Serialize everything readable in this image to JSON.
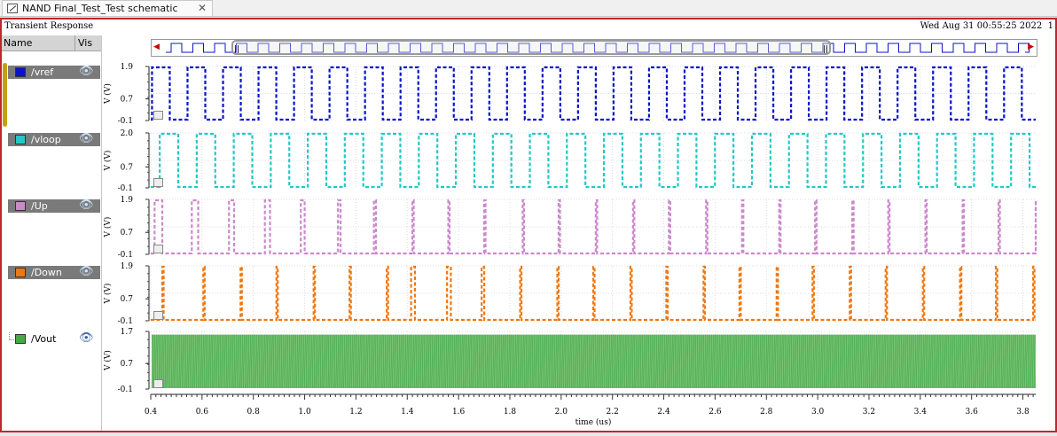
{
  "tab": {
    "title": "NAND Final_Test_Test schematic",
    "close_glyph": "✕"
  },
  "plot": {
    "title": "Transient Response",
    "date": "Wed Aug 31 00:55:25 2022",
    "page": "1"
  },
  "legend": {
    "header_name": "Name",
    "header_vis": "Vis",
    "items": [
      {
        "label": "/vref",
        "color": "#0a14c8",
        "selected": true,
        "icon": "eye-icon"
      },
      {
        "label": "/vloop",
        "color": "#22c8c8",
        "selected": true,
        "icon": "eye-icon"
      },
      {
        "label": "/Up",
        "color": "#cc88cc",
        "selected": true,
        "icon": "eye-icon"
      },
      {
        "label": "/Down",
        "color": "#f07810",
        "selected": true,
        "icon": "eye-icon"
      },
      {
        "label": "/Vout",
        "color": "#44aa44",
        "selected": false,
        "icon": "eye-icon"
      }
    ]
  },
  "chart_data": {
    "type": "line",
    "xlabel": "time (us)",
    "xlim": [
      0.4,
      3.85
    ],
    "x_ticks": [
      "0.4",
      "0.6",
      "0.8",
      "1.0",
      "1.2",
      "1.4",
      "1.6",
      "1.8",
      "2.0",
      "2.2",
      "2.4",
      "2.6",
      "2.8",
      "3.0",
      "3.2",
      "3.4",
      "3.6",
      "3.8"
    ],
    "grid": true,
    "series": [
      {
        "name": "/vref",
        "ylabel": "V (V)",
        "y_ticks": [
          "1.9",
          "0.7",
          "-0.1"
        ],
        "ylim": [
          -0.1,
          1.9
        ],
        "color": "#0a14c8",
        "kind": "square",
        "period_us": 0.1384,
        "duty": 0.5,
        "start_us": 0.405
      },
      {
        "name": "/vloop",
        "ylabel": "V (V)",
        "y_ticks": [
          "2.0",
          "0.7",
          "-0.1"
        ],
        "ylim": [
          -0.1,
          2.0
        ],
        "color": "#22c8c8",
        "kind": "square",
        "period_us": 0.1443,
        "duty": 0.5,
        "start_us": 0.435
      },
      {
        "name": "/Up",
        "ylabel": "V (V)",
        "y_ticks": [
          "1.9",
          "0.7",
          "-0.1"
        ],
        "ylim": [
          -0.1,
          1.9
        ],
        "color": "#cc88cc",
        "kind": "pulses",
        "pulses": [
          [
            0.415,
            0.445
          ],
          [
            0.56,
            0.585
          ],
          [
            0.705,
            0.725
          ],
          [
            0.845,
            0.865
          ],
          [
            0.985,
            1.0
          ],
          [
            1.13,
            1.14
          ],
          [
            1.27,
            1.278
          ],
          [
            1.42,
            1.425
          ],
          [
            1.56,
            1.565
          ],
          [
            1.7,
            1.705
          ],
          [
            1.85,
            1.855
          ],
          [
            1.99,
            1.995
          ],
          [
            2.135,
            2.14
          ],
          [
            2.28,
            2.285
          ],
          [
            2.42,
            2.425
          ],
          [
            2.565,
            2.57
          ],
          [
            2.705,
            2.71
          ],
          [
            2.85,
            2.855
          ],
          [
            2.99,
            2.995
          ],
          [
            3.135,
            3.14
          ],
          [
            3.275,
            3.28
          ],
          [
            3.42,
            3.425
          ],
          [
            3.565,
            3.57
          ],
          [
            3.705,
            3.71
          ],
          [
            3.85,
            3.855
          ]
        ]
      },
      {
        "name": "/Down",
        "ylabel": "V (V)",
        "y_ticks": [
          "1.9",
          "0.7",
          "-0.1"
        ],
        "ylim": [
          -0.1,
          1.9
        ],
        "color": "#f07810",
        "kind": "pulses",
        "pulses": [
          [
            0.445,
            0.45
          ],
          [
            0.605,
            0.61
          ],
          [
            0.75,
            0.755
          ],
          [
            0.89,
            0.895
          ],
          [
            1.035,
            1.04
          ],
          [
            1.175,
            1.18
          ],
          [
            1.32,
            1.325
          ],
          [
            1.415,
            1.43
          ],
          [
            1.555,
            1.57
          ],
          [
            1.69,
            1.7
          ],
          [
            1.84,
            1.845
          ],
          [
            1.985,
            1.99
          ],
          [
            2.125,
            2.13
          ],
          [
            2.27,
            2.275
          ],
          [
            2.41,
            2.415
          ],
          [
            2.555,
            2.56
          ],
          [
            2.695,
            2.7
          ],
          [
            2.84,
            2.845
          ],
          [
            2.98,
            2.985
          ],
          [
            3.125,
            3.13
          ],
          [
            3.265,
            3.27
          ],
          [
            3.41,
            3.415
          ],
          [
            3.555,
            3.56
          ],
          [
            3.695,
            3.7
          ],
          [
            3.84,
            3.845
          ]
        ]
      },
      {
        "name": "/Vout",
        "ylabel": "V (V)",
        "y_ticks": [
          "1.7",
          "0.7",
          "-0.1"
        ],
        "ylim": [
          -0.1,
          1.7
        ],
        "color": "#44aa44",
        "kind": "dense",
        "high": 1.6,
        "low": -0.1
      }
    ]
  }
}
